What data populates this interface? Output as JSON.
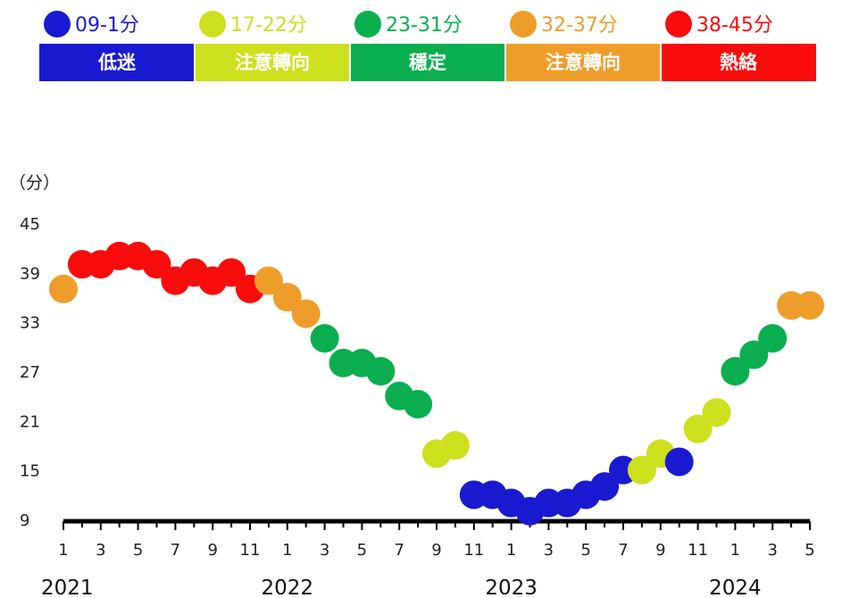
{
  "chart_data": {
    "type": "scatter",
    "unit_label": "（分）",
    "legend": [
      {
        "label": "09-1分",
        "color": "#1a1ad0",
        "band": "低迷"
      },
      {
        "label": "17-22分",
        "color": "#cde01e",
        "band": "注意轉向"
      },
      {
        "label": "23-31分",
        "color": "#0aae4e",
        "band": "穩定"
      },
      {
        "label": "32-37分",
        "color": "#ef9d2a",
        "band": "注意轉向"
      },
      {
        "label": "38-45分",
        "color": "#f80c0c",
        "band": "熱絡"
      }
    ],
    "yticks": [
      9,
      15,
      21,
      27,
      33,
      39,
      45
    ],
    "ylim": [
      9,
      45
    ],
    "xtick_labels": [
      "1",
      "3",
      "5",
      "7",
      "9",
      "11",
      "1",
      "3",
      "5",
      "7",
      "9",
      "11",
      "1",
      "3",
      "5",
      "7",
      "9",
      "11",
      "1",
      "3",
      "5"
    ],
    "year_labels": [
      "2021",
      "2022",
      "2023",
      "2024"
    ],
    "points": [
      {
        "x": "2021-01",
        "y": 37,
        "color": "#ef9d2a"
      },
      {
        "x": "2021-02",
        "y": 40,
        "color": "#f80c0c"
      },
      {
        "x": "2021-03",
        "y": 40,
        "color": "#f80c0c"
      },
      {
        "x": "2021-04",
        "y": 41,
        "color": "#f80c0c"
      },
      {
        "x": "2021-05",
        "y": 41,
        "color": "#f80c0c"
      },
      {
        "x": "2021-06",
        "y": 40,
        "color": "#f80c0c"
      },
      {
        "x": "2021-07",
        "y": 38,
        "color": "#f80c0c"
      },
      {
        "x": "2021-08",
        "y": 39,
        "color": "#f80c0c"
      },
      {
        "x": "2021-09",
        "y": 38,
        "color": "#f80c0c"
      },
      {
        "x": "2021-10",
        "y": 39,
        "color": "#f80c0c"
      },
      {
        "x": "2021-11",
        "y": 37,
        "color": "#f80c0c"
      },
      {
        "x": "2021-12",
        "y": 38,
        "color": "#ef9d2a"
      },
      {
        "x": "2022-01",
        "y": 36,
        "color": "#ef9d2a"
      },
      {
        "x": "2022-02",
        "y": 34,
        "color": "#ef9d2a"
      },
      {
        "x": "2022-03",
        "y": 31,
        "color": "#0aae4e"
      },
      {
        "x": "2022-04",
        "y": 28,
        "color": "#0aae4e"
      },
      {
        "x": "2022-05",
        "y": 28,
        "color": "#0aae4e"
      },
      {
        "x": "2022-06",
        "y": 27,
        "color": "#0aae4e"
      },
      {
        "x": "2022-07",
        "y": 24,
        "color": "#0aae4e"
      },
      {
        "x": "2022-08",
        "y": 23,
        "color": "#0aae4e"
      },
      {
        "x": "2022-09",
        "y": 17,
        "color": "#cde01e"
      },
      {
        "x": "2022-10",
        "y": 18,
        "color": "#cde01e"
      },
      {
        "x": "2022-11",
        "y": 12,
        "color": "#1a1ad0"
      },
      {
        "x": "2022-12",
        "y": 12,
        "color": "#1a1ad0"
      },
      {
        "x": "2023-01",
        "y": 11,
        "color": "#1a1ad0"
      },
      {
        "x": "2023-02",
        "y": 10,
        "color": "#1a1ad0"
      },
      {
        "x": "2023-03",
        "y": 11,
        "color": "#1a1ad0"
      },
      {
        "x": "2023-04",
        "y": 11,
        "color": "#1a1ad0"
      },
      {
        "x": "2023-05",
        "y": 12,
        "color": "#1a1ad0"
      },
      {
        "x": "2023-06",
        "y": 13,
        "color": "#1a1ad0"
      },
      {
        "x": "2023-07",
        "y": 15,
        "color": "#1a1ad0"
      },
      {
        "x": "2023-08",
        "y": 15,
        "color": "#cde01e"
      },
      {
        "x": "2023-09",
        "y": 17,
        "color": "#cde01e"
      },
      {
        "x": "2023-10",
        "y": 16,
        "color": "#1a1ad0"
      },
      {
        "x": "2023-11",
        "y": 20,
        "color": "#cde01e"
      },
      {
        "x": "2023-12",
        "y": 22,
        "color": "#cde01e"
      },
      {
        "x": "2024-01",
        "y": 27,
        "color": "#0aae4e"
      },
      {
        "x": "2024-02",
        "y": 29,
        "color": "#0aae4e"
      },
      {
        "x": "2024-03",
        "y": 31,
        "color": "#0aae4e"
      },
      {
        "x": "2024-04",
        "y": 35,
        "color": "#ef9d2a"
      },
      {
        "x": "2024-05",
        "y": 35,
        "color": "#ef9d2a"
      }
    ],
    "grid": false,
    "legend_position": "top"
  }
}
